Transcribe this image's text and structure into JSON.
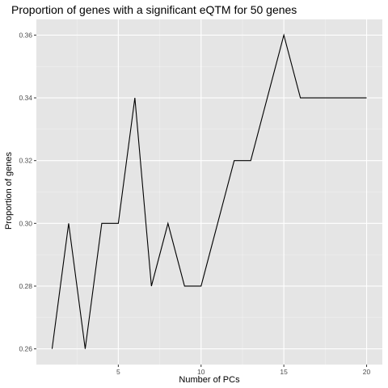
{
  "chart_data": {
    "type": "line",
    "title": "Proportion of genes with a significant eQTM for 50 genes",
    "xlabel": "Number of PCs",
    "ylabel": "Proportion of genes",
    "x": [
      1,
      2,
      3,
      4,
      5,
      6,
      7,
      8,
      9,
      10,
      11,
      12,
      13,
      14,
      15,
      16,
      17,
      18,
      19,
      20
    ],
    "series": [
      {
        "values": [
          0.26,
          0.3,
          0.26,
          0.3,
          0.3,
          0.34,
          0.28,
          0.3,
          0.28,
          0.28,
          0.3,
          0.32,
          0.32,
          0.34,
          0.36,
          0.34,
          0.34,
          0.34,
          0.34,
          0.34
        ]
      }
    ],
    "xlim": [
      0.05,
      20.95
    ],
    "ylim": [
      0.255,
      0.365
    ],
    "xticks": [
      5,
      10,
      15,
      20
    ],
    "xtick_labels": [
      "5",
      "10",
      "15",
      "20"
    ],
    "xminor": [
      2.5,
      7.5,
      12.5,
      17.5
    ],
    "yticks": [
      0.26,
      0.28,
      0.3,
      0.32,
      0.34,
      0.36
    ],
    "ytick_labels": [
      "0.26",
      "0.28",
      "0.30",
      "0.32",
      "0.34",
      "0.36"
    ],
    "yminor": [
      0.27,
      0.29,
      0.31,
      0.33,
      0.35
    ],
    "grid": true,
    "colors": {
      "panel": "#e5e5e5",
      "grid_major": "#ffffff",
      "line": "#000000",
      "tick": "#333333",
      "tick_label": "#4d4d4d"
    }
  }
}
